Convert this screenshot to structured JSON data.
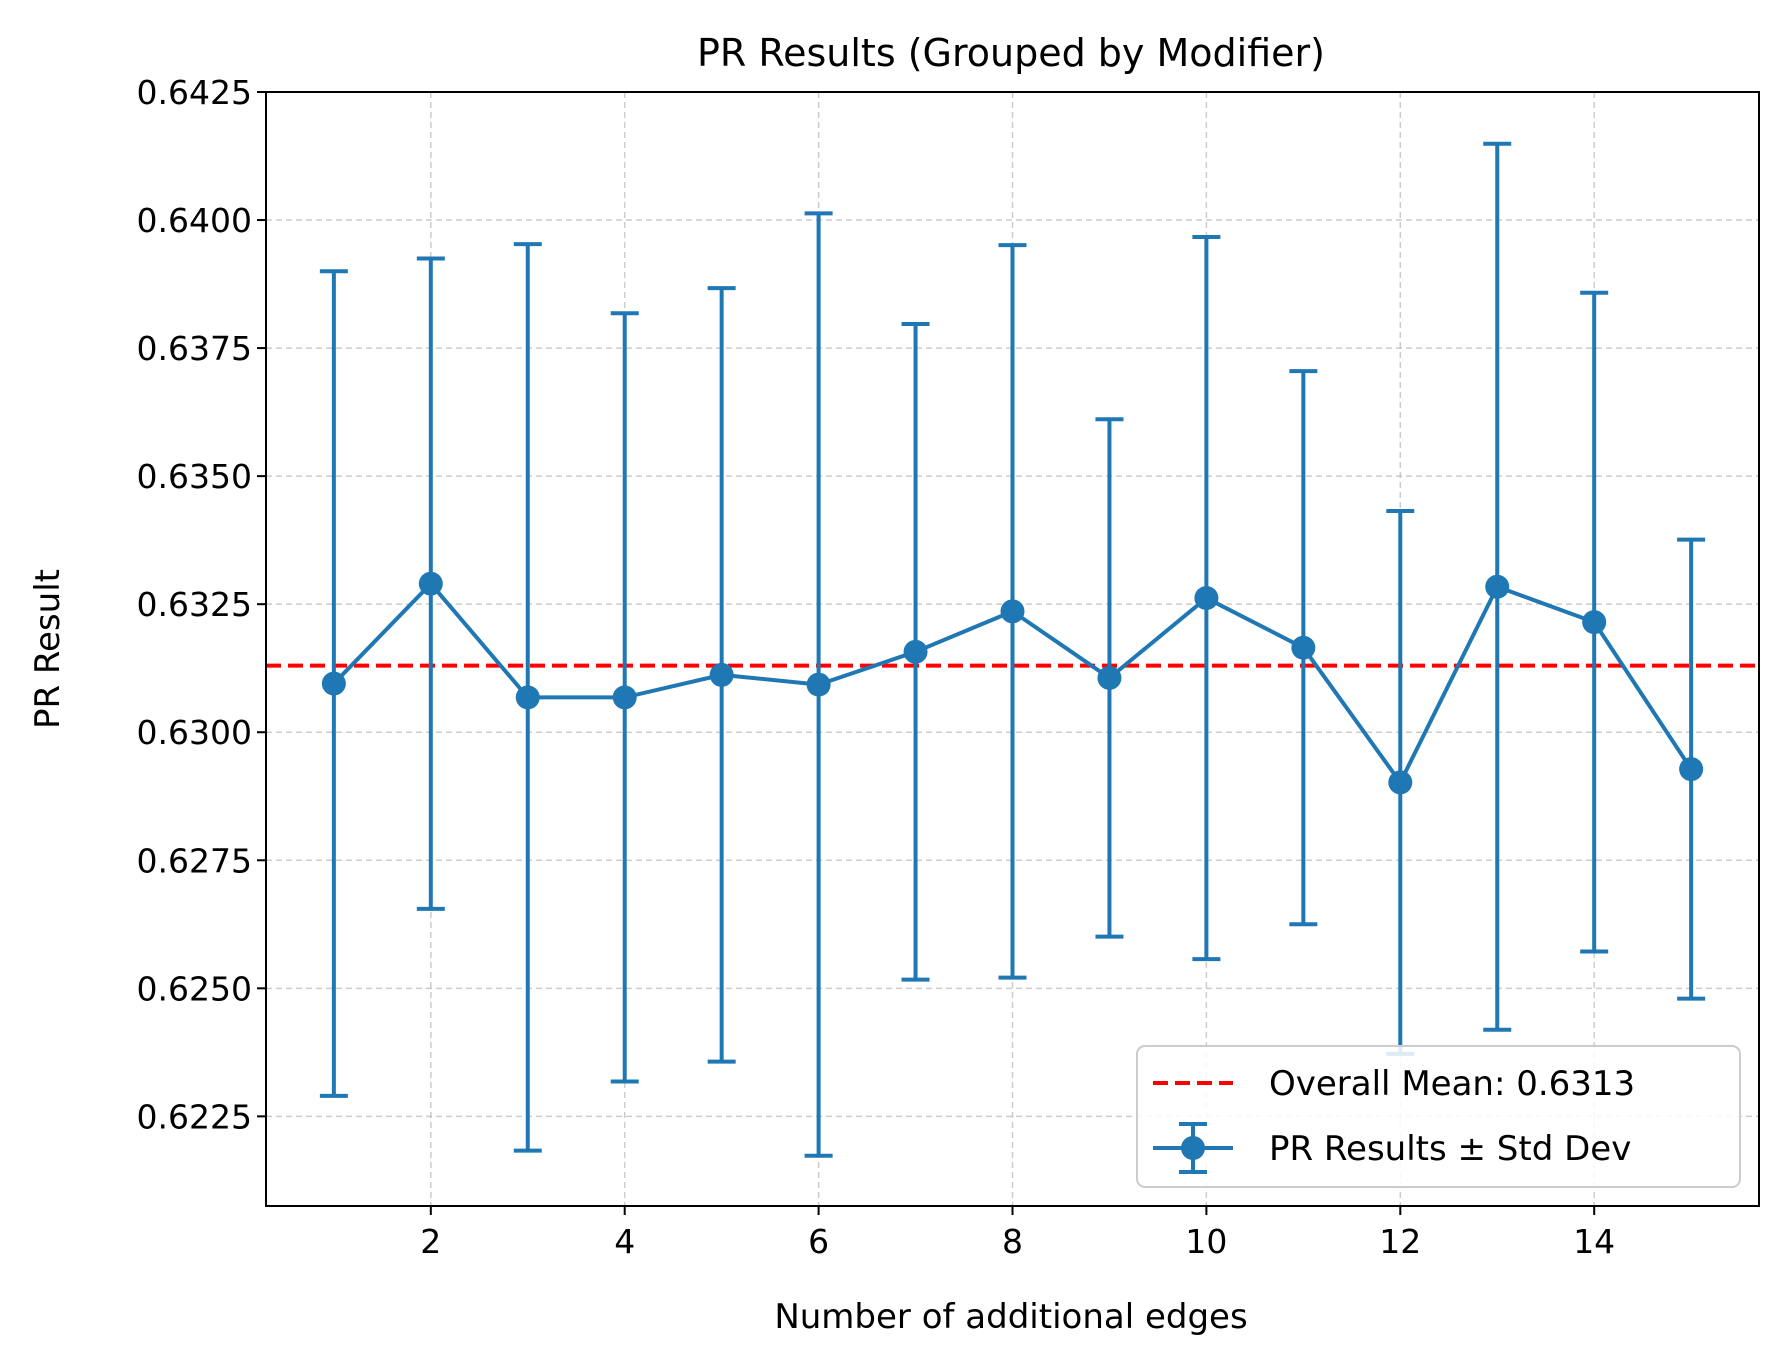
{
  "chart_data": {
    "type": "line",
    "title": "PR Results (Grouped by Modifier)",
    "xlabel": "Number of additional edges",
    "ylabel": "PR Result",
    "xlim": [
      0.3,
      15.7
    ],
    "ylim": [
      0.62075,
      0.6425
    ],
    "xticks": [
      2,
      4,
      6,
      8,
      10,
      12,
      14
    ],
    "xtick_labels": [
      "2",
      "4",
      "6",
      "8",
      "10",
      "12",
      "14"
    ],
    "yticks": [
      0.6225,
      0.625,
      0.6275,
      0.63,
      0.6325,
      0.635,
      0.6375,
      0.64,
      0.6425
    ],
    "ytick_labels": [
      "0.6225",
      "0.6250",
      "0.6275",
      "0.6300",
      "0.6325",
      "0.6350",
      "0.6375",
      "0.6400",
      "0.6425"
    ],
    "grid": true,
    "legend_position": "bottom-right",
    "series": [
      {
        "name": "PR Results ± Std Dev",
        "color": "#1f77b4",
        "x": [
          1,
          2,
          3,
          4,
          5,
          6,
          7,
          8,
          9,
          10,
          11,
          12,
          13,
          14,
          15
        ],
        "y": [
          0.63095,
          0.6329,
          0.63068,
          0.63068,
          0.63112,
          0.63093,
          0.63157,
          0.63236,
          0.63106,
          0.63262,
          0.63165,
          0.62902,
          0.63284,
          0.63215,
          0.62928
        ],
        "yerr": [
          0.00805,
          0.00635,
          0.00885,
          0.0075,
          0.00755,
          0.0092,
          0.0064,
          0.00715,
          0.00505,
          0.00705,
          0.0054,
          0.0053,
          0.00865,
          0.00643,
          0.00448
        ]
      }
    ],
    "reference_lines": [
      {
        "name": "Overall Mean: 0.6313",
        "orientation": "horizontal",
        "value": 0.6313,
        "color": "#ff0000",
        "style": "dashed"
      }
    ]
  }
}
